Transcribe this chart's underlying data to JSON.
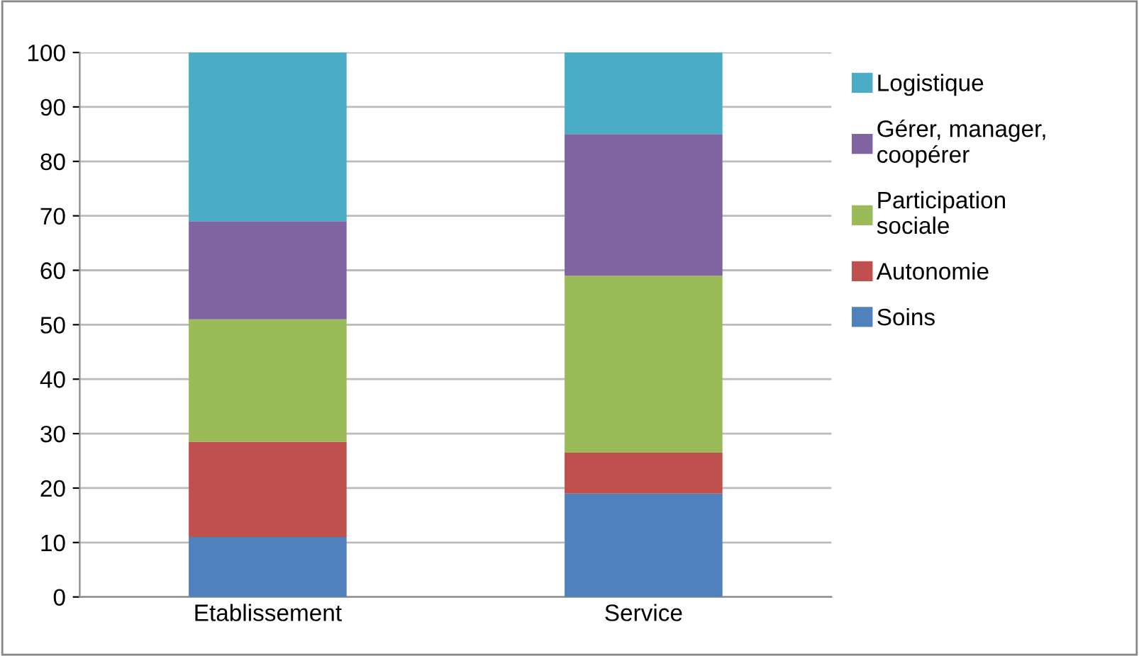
{
  "chart_data": {
    "type": "bar",
    "stacked": true,
    "categories": [
      "Etablissement",
      "Service"
    ],
    "series": [
      {
        "name": "Soins",
        "color": "#4f81bd",
        "values": [
          11,
          19
        ]
      },
      {
        "name": "Autonomie",
        "color": "#c0504d",
        "values": [
          17.5,
          7.5
        ]
      },
      {
        "name": "Participation\nsociale",
        "color": "#9bbb59",
        "values": [
          22.5,
          32.5
        ]
      },
      {
        "name": "Gérer, manager,\ncoopérer",
        "color": "#8064a2",
        "values": [
          18,
          26
        ]
      },
      {
        "name": "Logistique",
        "color": "#4bacc6",
        "values": [
          31,
          15
        ]
      }
    ],
    "ylim": [
      0,
      100
    ],
    "yticks": [
      0,
      10,
      20,
      30,
      40,
      50,
      60,
      70,
      80,
      90,
      100
    ],
    "grid": "y",
    "legend": "right"
  }
}
